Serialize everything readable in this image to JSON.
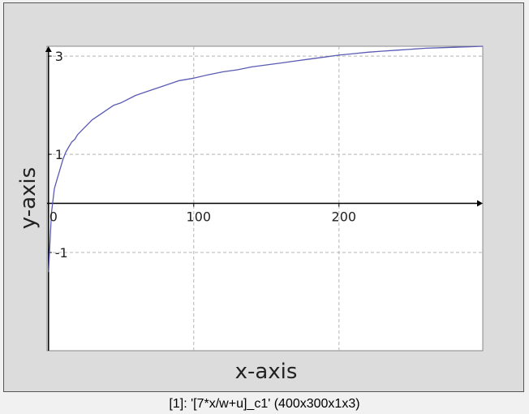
{
  "caption": "[1]: '[7*x/w+u]_c1' (400x300x1x3)",
  "chart_data": {
    "type": "line",
    "xlabel": "x-axis",
    "ylabel": "y-axis",
    "xlim": [
      -1,
      299
    ],
    "ylim": [
      -3,
      3.2
    ],
    "x_ticks": [
      {
        "value": 0,
        "label": "0"
      },
      {
        "value": 100,
        "label": "100"
      },
      {
        "value": 200,
        "label": "200"
      }
    ],
    "y_ticks": [
      {
        "value": -1,
        "label": "-1"
      },
      {
        "value": 1,
        "label": "1"
      },
      {
        "value": 3,
        "label": "3"
      }
    ],
    "grid": true,
    "series": [
      {
        "color": "#5a5ab4",
        "x": [
          0,
          2,
          4,
          6,
          8,
          10,
          12,
          14,
          16,
          18,
          20,
          25,
          30,
          35,
          40,
          45,
          50,
          60,
          70,
          80,
          90,
          100,
          110,
          120,
          130,
          140,
          150,
          160,
          170,
          180,
          190,
          200,
          210,
          220,
          230,
          240,
          250,
          260,
          270,
          280,
          290,
          299
        ],
        "y": [
          -1.4,
          -0.2,
          0.3,
          0.5,
          0.7,
          0.9,
          1.05,
          1.15,
          1.25,
          1.3,
          1.4,
          1.55,
          1.7,
          1.8,
          1.9,
          2.0,
          2.05,
          2.2,
          2.3,
          2.4,
          2.5,
          2.55,
          2.62,
          2.68,
          2.72,
          2.78,
          2.82,
          2.86,
          2.9,
          2.94,
          2.98,
          3.02,
          3.05,
          3.08,
          3.1,
          3.12,
          3.14,
          3.16,
          3.17,
          3.18,
          3.19,
          3.2
        ]
      }
    ]
  }
}
